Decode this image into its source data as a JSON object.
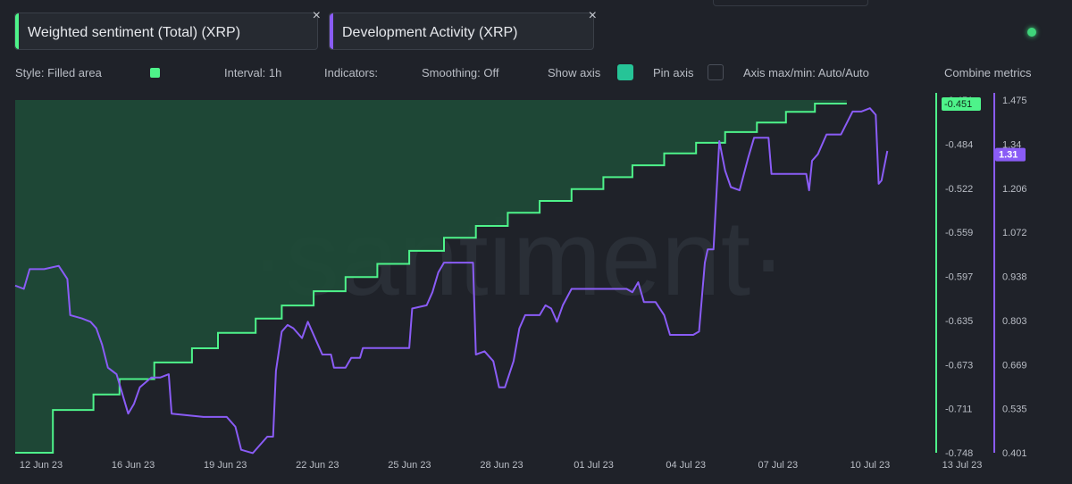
{
  "metrics": [
    {
      "label": "Weighted sentiment (Total) (XRP)",
      "color": "#4ef38a"
    },
    {
      "label": "Development Activity (XRP)",
      "color": "#8a5cf6"
    }
  ],
  "close_icon": "×",
  "settings": {
    "style": "Style: Filled area",
    "interval": "Interval: 1h",
    "indicators": "Indicators:",
    "smoothing": "Smoothing: Off",
    "show_axis": "Show axis",
    "pin_axis": "Pin axis",
    "axis_maxmin": "Axis max/min: Auto/Auto",
    "combine": "Combine metrics"
  },
  "watermark": "·santiment·",
  "chart_data": {
    "type": "area",
    "x_ticks": [
      "12 Jun 23",
      "16 Jun 23",
      "19 Jun 23",
      "22 Jun 23",
      "25 Jun 23",
      "28 Jun 23",
      "01 Jul 23",
      "04 Jul 23",
      "07 Jul 23",
      "10 Jul 23",
      "13 Jul 23"
    ],
    "series": [
      {
        "name": "Weighted sentiment (Total) (XRP)",
        "axis": "left",
        "color": "#4ef38a",
        "fill": "#1f4a37",
        "current_label": "-0.451",
        "y_ticks": [
          "-0.451",
          "-0.484",
          "-0.522",
          "-0.559",
          "-0.597",
          "-0.635",
          "-0.673",
          "-0.711",
          "-0.748"
        ],
        "ylim": [
          -0.748,
          -0.451
        ],
        "points": [
          [
            0.0,
            -0.748
          ],
          [
            1.3,
            -0.748
          ],
          [
            1.3,
            -0.712
          ],
          [
            2.7,
            -0.712
          ],
          [
            2.7,
            -0.699
          ],
          [
            3.6,
            -0.699
          ],
          [
            3.6,
            -0.686
          ],
          [
            4.8,
            -0.686
          ],
          [
            4.8,
            -0.672
          ],
          [
            6.1,
            -0.672
          ],
          [
            6.1,
            -0.66
          ],
          [
            7.0,
            -0.66
          ],
          [
            7.0,
            -0.647
          ],
          [
            8.3,
            -0.647
          ],
          [
            8.3,
            -0.635
          ],
          [
            9.2,
            -0.635
          ],
          [
            9.2,
            -0.624
          ],
          [
            10.3,
            -0.624
          ],
          [
            10.3,
            -0.612
          ],
          [
            11.4,
            -0.612
          ],
          [
            11.4,
            -0.6
          ],
          [
            12.5,
            -0.6
          ],
          [
            12.5,
            -0.589
          ],
          [
            13.6,
            -0.589
          ],
          [
            13.6,
            -0.578
          ],
          [
            14.8,
            -0.578
          ],
          [
            14.8,
            -0.567
          ],
          [
            15.9,
            -0.567
          ],
          [
            15.9,
            -0.557
          ],
          [
            17.0,
            -0.557
          ],
          [
            17.0,
            -0.546
          ],
          [
            18.1,
            -0.546
          ],
          [
            18.1,
            -0.536
          ],
          [
            19.2,
            -0.536
          ],
          [
            19.2,
            -0.526
          ],
          [
            20.3,
            -0.526
          ],
          [
            20.3,
            -0.516
          ],
          [
            21.3,
            -0.516
          ],
          [
            21.3,
            -0.506
          ],
          [
            22.4,
            -0.506
          ],
          [
            22.4,
            -0.496
          ],
          [
            23.5,
            -0.496
          ],
          [
            23.5,
            -0.487
          ],
          [
            24.5,
            -0.487
          ],
          [
            24.5,
            -0.478
          ],
          [
            25.6,
            -0.478
          ],
          [
            25.6,
            -0.47
          ],
          [
            26.6,
            -0.47
          ],
          [
            26.6,
            -0.461
          ],
          [
            27.6,
            -0.461
          ],
          [
            27.6,
            -0.454
          ],
          [
            28.7,
            -0.454
          ]
        ]
      },
      {
        "name": "Development Activity (XRP)",
        "axis": "right",
        "color": "#8a5cf6",
        "current_label": "1.31",
        "y_ticks": [
          "1.475",
          "1.34",
          "1.206",
          "1.072",
          "0.938",
          "0.803",
          "0.669",
          "0.535",
          "0.401"
        ],
        "ylim": [
          0.401,
          1.475
        ],
        "points": [
          [
            0.0,
            0.91
          ],
          [
            0.3,
            0.9
          ],
          [
            0.5,
            0.96
          ],
          [
            1.0,
            0.96
          ],
          [
            1.5,
            0.97
          ],
          [
            1.8,
            0.93
          ],
          [
            1.9,
            0.82
          ],
          [
            2.3,
            0.81
          ],
          [
            2.6,
            0.8
          ],
          [
            2.8,
            0.78
          ],
          [
            3.0,
            0.73
          ],
          [
            3.2,
            0.66
          ],
          [
            3.5,
            0.64
          ],
          [
            3.7,
            0.58
          ],
          [
            3.9,
            0.52
          ],
          [
            4.1,
            0.55
          ],
          [
            4.3,
            0.6
          ],
          [
            4.7,
            0.63
          ],
          [
            5.0,
            0.63
          ],
          [
            5.3,
            0.64
          ],
          [
            5.4,
            0.52
          ],
          [
            6.5,
            0.51
          ],
          [
            7.3,
            0.51
          ],
          [
            7.6,
            0.48
          ],
          [
            7.8,
            0.41
          ],
          [
            8.2,
            0.4
          ],
          [
            8.7,
            0.45
          ],
          [
            8.9,
            0.45
          ],
          [
            9.0,
            0.65
          ],
          [
            9.2,
            0.77
          ],
          [
            9.4,
            0.79
          ],
          [
            9.6,
            0.78
          ],
          [
            9.9,
            0.75
          ],
          [
            10.1,
            0.8
          ],
          [
            10.4,
            0.74
          ],
          [
            10.6,
            0.7
          ],
          [
            10.9,
            0.7
          ],
          [
            11.0,
            0.66
          ],
          [
            11.4,
            0.66
          ],
          [
            11.6,
            0.69
          ],
          [
            11.9,
            0.69
          ],
          [
            12.0,
            0.72
          ],
          [
            13.6,
            0.72
          ],
          [
            13.7,
            0.84
          ],
          [
            14.2,
            0.85
          ],
          [
            14.4,
            0.89
          ],
          [
            14.6,
            0.95
          ],
          [
            14.8,
            0.98
          ],
          [
            15.2,
            0.98
          ],
          [
            15.8,
            0.98
          ],
          [
            15.9,
            0.7
          ],
          [
            16.2,
            0.71
          ],
          [
            16.5,
            0.68
          ],
          [
            16.7,
            0.6
          ],
          [
            16.9,
            0.6
          ],
          [
            17.2,
            0.68
          ],
          [
            17.4,
            0.78
          ],
          [
            17.6,
            0.82
          ],
          [
            18.1,
            0.82
          ],
          [
            18.3,
            0.85
          ],
          [
            18.5,
            0.84
          ],
          [
            18.7,
            0.8
          ],
          [
            18.9,
            0.85
          ],
          [
            19.2,
            0.9
          ],
          [
            20.0,
            0.9
          ],
          [
            21.1,
            0.9
          ],
          [
            21.3,
            0.89
          ],
          [
            21.5,
            0.92
          ],
          [
            21.7,
            0.86
          ],
          [
            22.1,
            0.86
          ],
          [
            22.4,
            0.82
          ],
          [
            22.6,
            0.76
          ],
          [
            23.4,
            0.76
          ],
          [
            23.6,
            0.77
          ],
          [
            23.8,
            0.98
          ],
          [
            23.9,
            1.02
          ],
          [
            24.1,
            1.02
          ],
          [
            24.3,
            1.35
          ],
          [
            24.5,
            1.26
          ],
          [
            24.7,
            1.21
          ],
          [
            25.0,
            1.2
          ],
          [
            25.3,
            1.3
          ],
          [
            25.5,
            1.36
          ],
          [
            26.0,
            1.36
          ],
          [
            26.1,
            1.25
          ],
          [
            27.3,
            1.25
          ],
          [
            27.4,
            1.2
          ],
          [
            27.5,
            1.29
          ],
          [
            27.7,
            1.31
          ],
          [
            28.0,
            1.37
          ],
          [
            28.5,
            1.37
          ],
          [
            28.9,
            1.44
          ],
          [
            29.2,
            1.44
          ],
          [
            29.5,
            1.45
          ],
          [
            29.7,
            1.43
          ],
          [
            29.8,
            1.22
          ],
          [
            29.9,
            1.23
          ],
          [
            30.1,
            1.32
          ]
        ]
      }
    ],
    "x_range": [
      0.0,
      30.8
    ],
    "grid": false,
    "legend": "top-left"
  }
}
